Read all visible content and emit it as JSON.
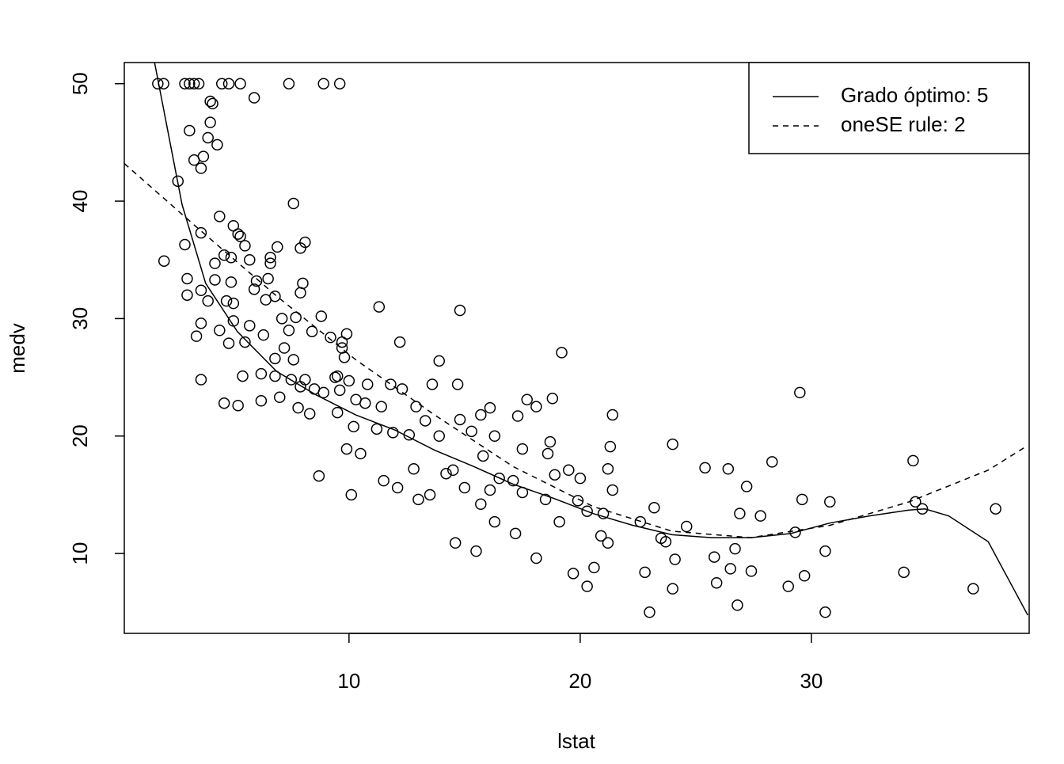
{
  "chart_data": {
    "type": "scatter",
    "xlabel": "lstat",
    "ylabel": "medv",
    "xlim": [
      0.28,
      39.42
    ],
    "ylim": [
      3.2,
      51.8
    ],
    "xticks": [
      10,
      20,
      30
    ],
    "yticks": [
      10,
      20,
      30,
      40,
      50
    ],
    "point_color": "#000000",
    "x": [
      1.73,
      1.98,
      2.9,
      3.1,
      3.3,
      3.5,
      4.5,
      4.8,
      5.3,
      7.4,
      8.9,
      9.6,
      5.9,
      4.0,
      4.1,
      4.0,
      3.1,
      3.9,
      4.3,
      3.3,
      3.7,
      3.6,
      2.6,
      7.6,
      4.4,
      5.0,
      5.2,
      5.3,
      3.6,
      8.1,
      5.5,
      6.9,
      7.9,
      5.7,
      4.6,
      4.9,
      6.6,
      6.6,
      2.0,
      4.2,
      2.9,
      3.0,
      4.2,
      4.9,
      6.0,
      8.0,
      6.5,
      5.9,
      7.9,
      3.0,
      3.6,
      3.9,
      5.0,
      6.8,
      6.4,
      4.7,
      7.1,
      7.7,
      8.8,
      5.0,
      3.6,
      5.7,
      4.4,
      7.4,
      9.2,
      9.9,
      9.7,
      3.4,
      6.3,
      8.4,
      5.5,
      4.8,
      9.7,
      7.2,
      7.6,
      6.8,
      9.8,
      3.6,
      5.4,
      6.2,
      6.8,
      7.5,
      8.1,
      9.4,
      9.5,
      10.0,
      11.3,
      14.8,
      19.2,
      12.2,
      13.9,
      4.6,
      5.2,
      6.2,
      7.0,
      7.8,
      8.3,
      9.5,
      10.2,
      10.5,
      9.9,
      8.7,
      10.1,
      11.5,
      12.1,
      12.8,
      13.0,
      13.5,
      14.2,
      15.0,
      15.7,
      16.1,
      16.3,
      14.6,
      15.5,
      17.2,
      18.1,
      19.7,
      20.3,
      20.6,
      22.8,
      23.0,
      24.1,
      24.0,
      25.8,
      25.9,
      26.5,
      26.8,
      27.4,
      29.0,
      29.7,
      30.6,
      30.6,
      34.0,
      37.0,
      37.97,
      34.4,
      34.5,
      34.8,
      29.5,
      29.6,
      30.8,
      28.3,
      27.2,
      26.4,
      25.4,
      24.0,
      21.4,
      21.3,
      21.2,
      18.8,
      17.7,
      18.1,
      16.1,
      15.7,
      17.3,
      14.8,
      12.3,
      11.8,
      10.8,
      13.6,
      14.7,
      12.9,
      11.4,
      15.3,
      16.3,
      17.5,
      18.6,
      18.9,
      19.5,
      20.0,
      21.4,
      19.9,
      20.3,
      21.0,
      22.6,
      23.2,
      23.7,
      24.6,
      26.9,
      27.8,
      29.3,
      26.7,
      23.5,
      21.2,
      20.9,
      19.1,
      18.5,
      17.5,
      18.7,
      17.1,
      16.5,
      15.8,
      14.5,
      13.9,
      13.3,
      12.6,
      11.9,
      11.2,
      10.7,
      10.3,
      9.6,
      8.9,
      8.5,
      7.9
    ],
    "y": [
      50,
      50,
      50,
      50,
      50,
      50,
      50,
      50,
      50,
      50,
      50,
      50,
      48.8,
      48.5,
      48.3,
      46.7,
      46,
      45.4,
      44.8,
      43.5,
      43.8,
      42.8,
      41.7,
      39.8,
      38.7,
      37.9,
      37.2,
      37.0,
      37.3,
      36.5,
      36.2,
      36.1,
      36.0,
      35.0,
      35.4,
      35.2,
      35.2,
      34.7,
      34.9,
      34.7,
      36.3,
      33.4,
      33.3,
      33.1,
      33.2,
      33.0,
      33.4,
      32.5,
      32.2,
      32.0,
      32.4,
      31.5,
      31.3,
      31.9,
      31.6,
      31.5,
      30.0,
      30.1,
      30.2,
      29.8,
      29.6,
      29.4,
      29.0,
      29.0,
      28.4,
      28.7,
      28.0,
      28.5,
      28.6,
      28.9,
      28.0,
      27.9,
      27.5,
      27.5,
      26.5,
      26.6,
      26.7,
      24.8,
      25.1,
      25.3,
      25.1,
      24.8,
      24.8,
      25.0,
      25.1,
      24.7,
      31.0,
      30.7,
      27.1,
      28.0,
      26.4,
      22.8,
      22.6,
      23.0,
      23.3,
      22.4,
      21.9,
      22.0,
      20.8,
      18.5,
      18.9,
      16.6,
      15.0,
      16.2,
      15.6,
      17.2,
      14.6,
      15.0,
      16.8,
      15.6,
      14.2,
      15.4,
      12.7,
      10.9,
      10.2,
      11.7,
      9.6,
      8.3,
      7.2,
      8.8,
      8.4,
      5.0,
      9.5,
      7.0,
      9.7,
      7.5,
      8.7,
      5.6,
      8.5,
      7.2,
      8.1,
      5.0,
      10.2,
      8.4,
      7.0,
      13.8,
      17.9,
      14.4,
      13.8,
      23.7,
      14.6,
      14.4,
      17.8,
      15.7,
      17.2,
      17.3,
      19.3,
      21.8,
      19.1,
      17.2,
      23.2,
      23.1,
      22.5,
      22.4,
      21.8,
      21.7,
      21.4,
      24.0,
      24.4,
      24.4,
      24.4,
      24.4,
      22.5,
      22.5,
      20.4,
      20.0,
      18.9,
      18.5,
      16.7,
      17.1,
      16.4,
      15.4,
      14.5,
      13.6,
      13.4,
      12.7,
      13.9,
      11.0,
      12.3,
      13.4,
      13.2,
      11.8,
      10.4,
      11.3,
      10.9,
      11.5,
      12.7,
      14.6,
      15.2,
      19.5,
      16.2,
      16.4,
      18.3,
      17.1,
      20.0,
      21.3,
      20.1,
      20.3,
      20.6,
      22.8,
      23.1,
      23.9,
      23.7,
      24.0,
      24.2
    ],
    "series": [
      {
        "name": "Grado óptimo: 5",
        "color": "#000000",
        "style": "solid",
        "x": [
          1.58,
          2.78,
          3.8,
          5.17,
          6.87,
          8.58,
          10.29,
          12.0,
          13.7,
          15.4,
          17.1,
          18.85,
          20.56,
          22.27,
          23.97,
          25.68,
          27.39,
          29.1,
          30.81,
          32.52,
          34.23,
          34.91,
          35.94,
          37.65,
          39.36
        ],
        "values": [
          51.9,
          39.7,
          33.0,
          28.9,
          25.5,
          23.5,
          21.8,
          20.5,
          18.8,
          17.4,
          15.9,
          14.7,
          13.4,
          12.4,
          11.6,
          11.35,
          11.35,
          11.7,
          12.6,
          13.2,
          13.7,
          13.8,
          13.2,
          11.0,
          4.75
        ]
      },
      {
        "name": "oneSE rule: 2",
        "color": "#000000",
        "style": "dashed",
        "x": [
          0.28,
          3.46,
          6.88,
          10.29,
          13.7,
          17.1,
          20.56,
          23.97,
          27.39,
          30.81,
          34.23,
          37.65,
          39.36
        ],
        "values": [
          43.2,
          37.7,
          31.9,
          26.5,
          21.8,
          17.4,
          14.0,
          11.9,
          11.35,
          12.4,
          14.4,
          17.1,
          19.2
        ]
      }
    ],
    "legend": "top-right"
  }
}
